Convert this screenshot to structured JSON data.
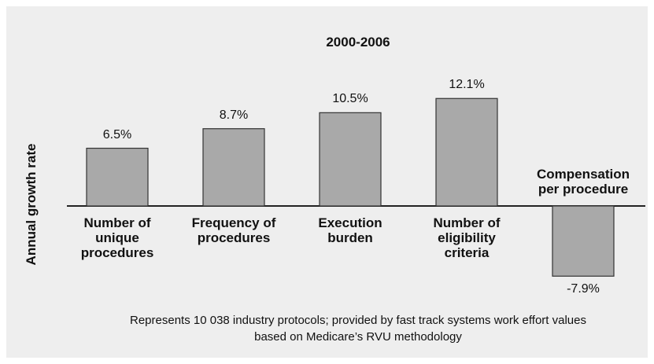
{
  "chart_data": {
    "type": "bar",
    "title": "2000-2006",
    "y_label": "Annual growth rate",
    "categories": [
      "Number of unique procedures",
      "Frequency of procedures",
      "Execution burden",
      "Number of eligibility criteria",
      "Compensation per procedure"
    ],
    "values": [
      6.5,
      8.7,
      10.5,
      12.1,
      -7.9
    ],
    "value_labels": [
      "6.5%",
      "8.7%",
      "10.5%",
      "12.1%",
      "-7.9%"
    ],
    "color": "#a9a9a9",
    "note": "Represents 10 038 industry protocols; provided by fast track systems work effort values based on Medicare’s RVU methodology"
  }
}
